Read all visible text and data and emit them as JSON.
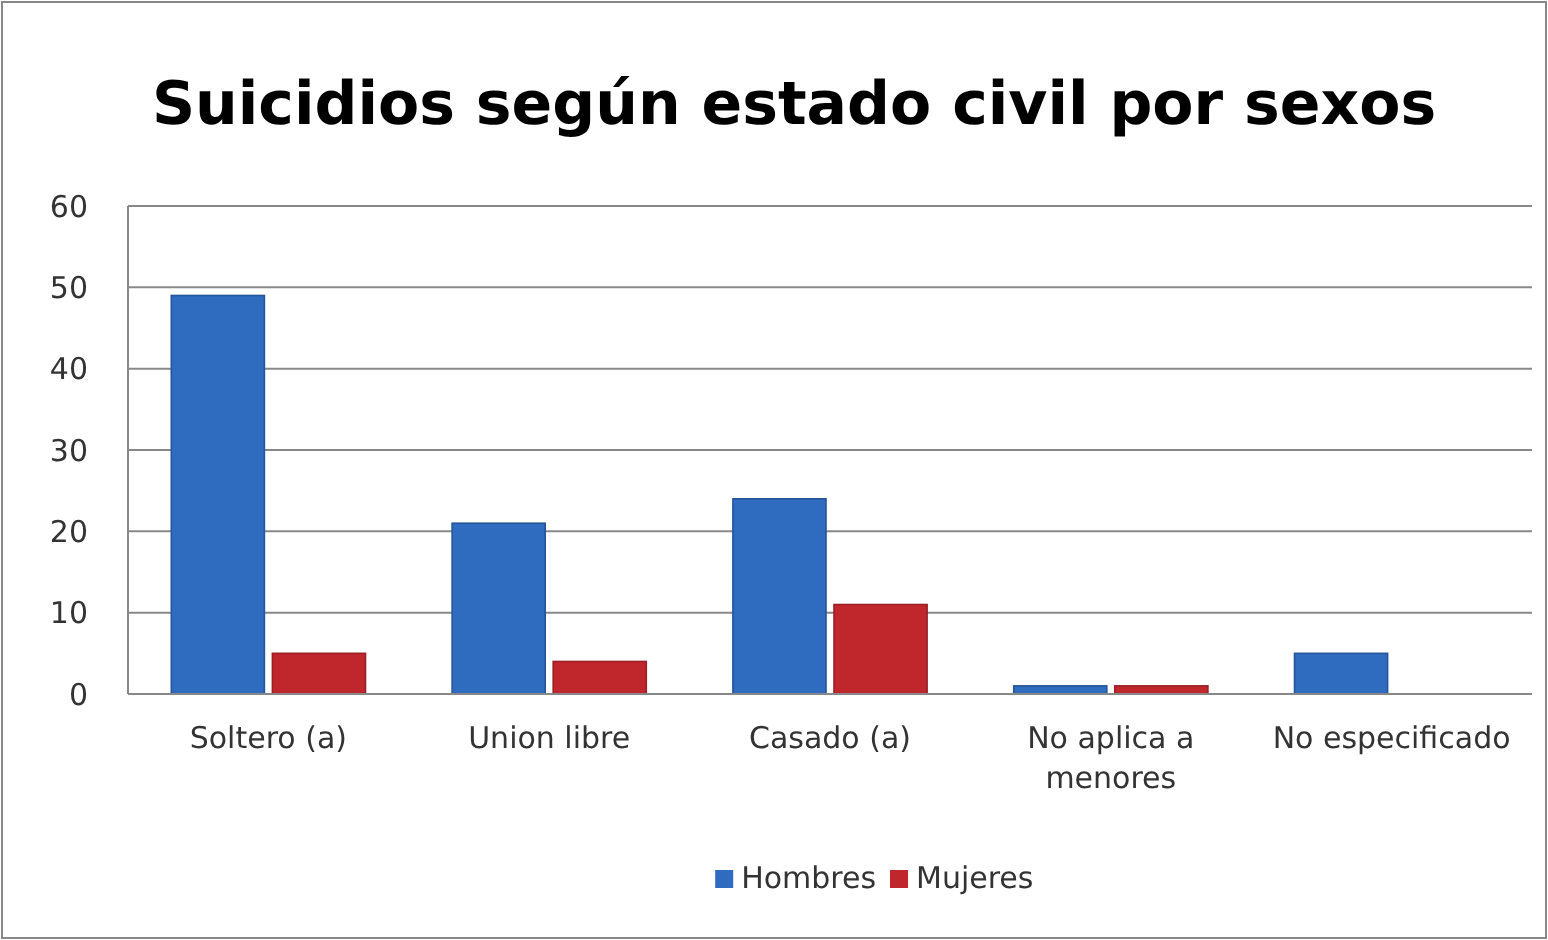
{
  "chart_data": {
    "type": "bar",
    "title": "Suicidios según estado civil por sexos",
    "categories": [
      "Soltero (a)",
      "Union libre",
      "Casado (a)",
      "No aplica a menores",
      "No especificado"
    ],
    "series": [
      {
        "name": "Hombres",
        "color": "#2f6bbf",
        "values": [
          49,
          21,
          24,
          1,
          5
        ]
      },
      {
        "name": "Mujeres",
        "color": "#c0272d",
        "values": [
          5,
          4,
          11,
          1,
          0
        ]
      }
    ],
    "ylim": [
      0,
      60
    ],
    "yticks": [
      0,
      10,
      20,
      30,
      40,
      50,
      60
    ],
    "grid": "y",
    "legend": "bottom"
  }
}
